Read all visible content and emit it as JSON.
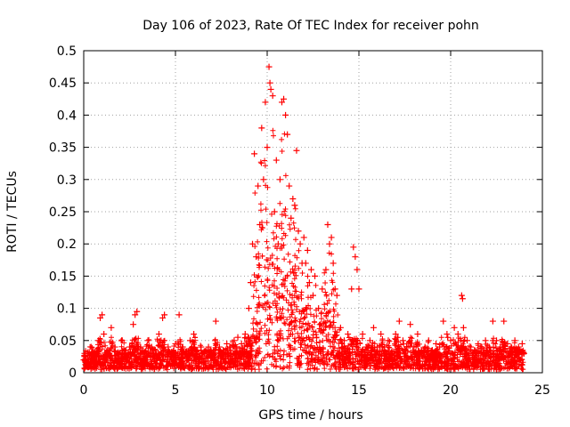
{
  "chart_data": {
    "type": "scatter",
    "title": "Day 106 of 2023, Rate Of TEC Index for receiver pohn",
    "xlabel": "GPS time / hours",
    "ylabel": "ROTI / TECUs",
    "xlim": [
      0,
      25
    ],
    "ylim": [
      0,
      0.5
    ],
    "x_ticks": [
      0,
      5,
      10,
      15,
      20,
      25
    ],
    "y_ticks": [
      0,
      0.05,
      0.1,
      0.15,
      0.2,
      0.25,
      0.3,
      0.35,
      0.4,
      0.45,
      0.5
    ],
    "x_tick_labels": [
      "0",
      "5",
      "10",
      "15",
      "20",
      "25"
    ],
    "y_tick_labels": [
      "0",
      "0.05",
      "0.1",
      "0.15",
      "0.2",
      "0.25",
      "0.3",
      "0.35",
      "0.4",
      "0.45",
      "0.5"
    ],
    "grid": true,
    "marker": "+",
    "marker_color": "#ff0000",
    "series": [
      {
        "name": "",
        "points": [
          [
            0.0,
            0.02
          ],
          [
            0.2,
            0.03
          ],
          [
            0.4,
            0.04
          ],
          [
            0.6,
            0.025
          ],
          [
            0.8,
            0.05
          ],
          [
            0.9,
            0.085
          ],
          [
            1.0,
            0.09
          ],
          [
            1.1,
            0.06
          ],
          [
            1.3,
            0.035
          ],
          [
            1.5,
            0.07
          ],
          [
            1.7,
            0.04
          ],
          [
            1.9,
            0.03
          ],
          [
            2.1,
            0.05
          ],
          [
            2.3,
            0.035
          ],
          [
            2.5,
            0.04
          ],
          [
            2.7,
            0.075
          ],
          [
            2.8,
            0.09
          ],
          [
            2.9,
            0.095
          ],
          [
            3.1,
            0.04
          ],
          [
            3.3,
            0.03
          ],
          [
            3.5,
            0.05
          ],
          [
            3.7,
            0.04
          ],
          [
            3.9,
            0.035
          ],
          [
            4.1,
            0.06
          ],
          [
            4.3,
            0.085
          ],
          [
            4.4,
            0.09
          ],
          [
            4.6,
            0.04
          ],
          [
            4.8,
            0.03
          ],
          [
            5.0,
            0.045
          ],
          [
            5.2,
            0.09
          ],
          [
            5.4,
            0.04
          ],
          [
            5.6,
            0.03
          ],
          [
            5.8,
            0.05
          ],
          [
            6.0,
            0.06
          ],
          [
            6.2,
            0.035
          ],
          [
            6.4,
            0.04
          ],
          [
            6.6,
            0.03
          ],
          [
            6.8,
            0.04
          ],
          [
            7.0,
            0.03
          ],
          [
            7.2,
            0.08
          ],
          [
            7.4,
            0.04
          ],
          [
            7.6,
            0.035
          ],
          [
            7.8,
            0.045
          ],
          [
            8.0,
            0.04
          ],
          [
            8.2,
            0.05
          ],
          [
            8.4,
            0.055
          ],
          [
            8.6,
            0.045
          ],
          [
            8.8,
            0.06
          ],
          [
            9.0,
            0.1
          ],
          [
            9.1,
            0.14
          ],
          [
            9.2,
            0.2
          ],
          [
            9.3,
            0.34
          ],
          [
            9.4,
            0.18
          ],
          [
            9.5,
            0.29
          ],
          [
            9.6,
            0.23
          ],
          [
            9.7,
            0.38
          ],
          [
            9.8,
            0.3
          ],
          [
            9.9,
            0.42
          ],
          [
            10.0,
            0.35
          ],
          [
            10.1,
            0.475
          ],
          [
            10.15,
            0.45
          ],
          [
            10.2,
            0.44
          ],
          [
            10.3,
            0.43
          ],
          [
            10.4,
            0.25
          ],
          [
            10.5,
            0.33
          ],
          [
            10.6,
            0.2
          ],
          [
            10.7,
            0.3
          ],
          [
            10.8,
            0.42
          ],
          [
            10.9,
            0.425
          ],
          [
            11.0,
            0.4
          ],
          [
            11.1,
            0.37
          ],
          [
            11.2,
            0.29
          ],
          [
            11.3,
            0.24
          ],
          [
            11.4,
            0.27
          ],
          [
            11.5,
            0.26
          ],
          [
            11.6,
            0.345
          ],
          [
            11.7,
            0.22
          ],
          [
            11.8,
            0.2
          ],
          [
            11.9,
            0.17
          ],
          [
            12.0,
            0.21
          ],
          [
            12.1,
            0.17
          ],
          [
            12.2,
            0.19
          ],
          [
            12.3,
            0.14
          ],
          [
            12.4,
            0.16
          ],
          [
            12.5,
            0.12
          ],
          [
            12.6,
            0.15
          ],
          [
            12.8,
            0.1
          ],
          [
            13.0,
            0.13
          ],
          [
            13.2,
            0.16
          ],
          [
            13.3,
            0.23
          ],
          [
            13.4,
            0.2
          ],
          [
            13.5,
            0.21
          ],
          [
            13.6,
            0.17
          ],
          [
            13.7,
            0.13
          ],
          [
            13.8,
            0.12
          ],
          [
            14.0,
            0.07
          ],
          [
            14.2,
            0.05
          ],
          [
            14.4,
            0.06
          ],
          [
            14.6,
            0.13
          ],
          [
            14.7,
            0.195
          ],
          [
            14.8,
            0.18
          ],
          [
            14.9,
            0.16
          ],
          [
            15.0,
            0.13
          ],
          [
            15.2,
            0.06
          ],
          [
            15.4,
            0.04
          ],
          [
            15.6,
            0.05
          ],
          [
            15.8,
            0.07
          ],
          [
            16.0,
            0.04
          ],
          [
            16.2,
            0.06
          ],
          [
            16.4,
            0.04
          ],
          [
            16.6,
            0.05
          ],
          [
            16.8,
            0.03
          ],
          [
            17.0,
            0.06
          ],
          [
            17.2,
            0.08
          ],
          [
            17.4,
            0.05
          ],
          [
            17.6,
            0.04
          ],
          [
            17.8,
            0.075
          ],
          [
            18.0,
            0.04
          ],
          [
            18.2,
            0.06
          ],
          [
            18.4,
            0.035
          ],
          [
            18.6,
            0.04
          ],
          [
            18.8,
            0.05
          ],
          [
            19.0,
            0.035
          ],
          [
            19.2,
            0.045
          ],
          [
            19.4,
            0.04
          ],
          [
            19.6,
            0.08
          ],
          [
            19.8,
            0.06
          ],
          [
            20.0,
            0.05
          ],
          [
            20.2,
            0.07
          ],
          [
            20.4,
            0.06
          ],
          [
            20.6,
            0.12
          ],
          [
            20.65,
            0.115
          ],
          [
            20.7,
            0.07
          ],
          [
            20.9,
            0.05
          ],
          [
            21.1,
            0.04
          ],
          [
            21.3,
            0.035
          ],
          [
            21.5,
            0.045
          ],
          [
            21.7,
            0.04
          ],
          [
            21.9,
            0.05
          ],
          [
            22.1,
            0.04
          ],
          [
            22.3,
            0.08
          ],
          [
            22.5,
            0.05
          ],
          [
            22.7,
            0.04
          ],
          [
            22.9,
            0.08
          ],
          [
            23.1,
            0.045
          ],
          [
            23.3,
            0.04
          ],
          [
            23.5,
            0.05
          ],
          [
            23.7,
            0.04
          ],
          [
            23.9,
            0.045
          ],
          [
            24.0,
            0.03
          ]
        ]
      }
    ]
  }
}
